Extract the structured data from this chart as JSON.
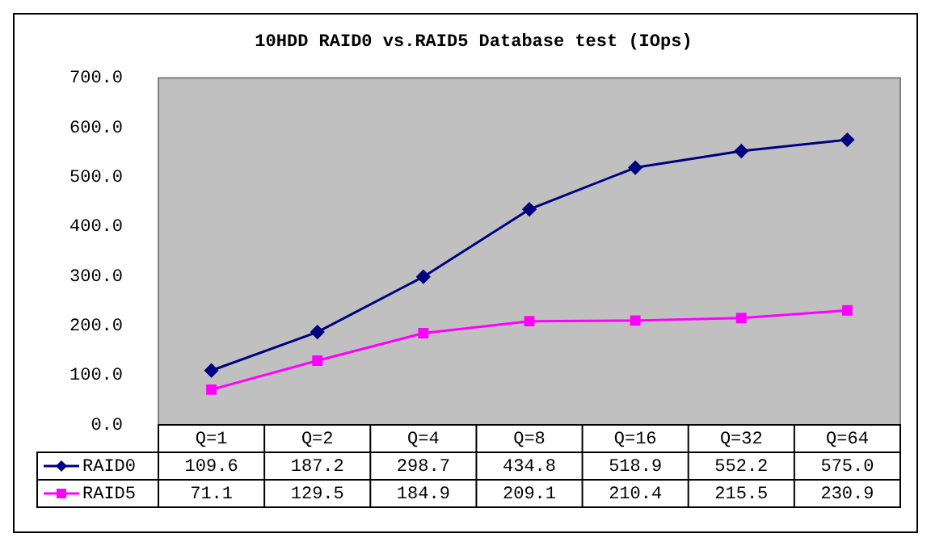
{
  "chart_data": {
    "type": "line",
    "title": "10HDD RAID0 vs.RAID5 Database test (IOps)",
    "categories": [
      "Q=1",
      "Q=2",
      "Q=4",
      "Q=8",
      "Q=16",
      "Q=32",
      "Q=64"
    ],
    "series": [
      {
        "name": "RAID0",
        "color": "#000080",
        "marker": "diamond",
        "values": [
          109.6,
          187.2,
          298.7,
          434.8,
          518.9,
          552.2,
          575.0
        ],
        "value_labels": [
          "109.6",
          "187.2",
          "298.7",
          "434.8",
          "518.9",
          "552.2",
          "575.0"
        ]
      },
      {
        "name": "RAID5",
        "color": "#ff00ff",
        "marker": "square",
        "values": [
          71.1,
          129.5,
          184.9,
          209.1,
          210.4,
          215.5,
          230.9
        ],
        "value_labels": [
          "71.1",
          "129.5",
          "184.9",
          "209.1",
          "210.4",
          "215.5",
          "230.9"
        ]
      }
    ],
    "ylim": [
      0,
      700
    ],
    "yticks": [
      {
        "value": 0,
        "label": "0.0"
      },
      {
        "value": 100,
        "label": "100.0"
      },
      {
        "value": 200,
        "label": "200.0"
      },
      {
        "value": 300,
        "label": "300.0"
      },
      {
        "value": 400,
        "label": "400.0"
      },
      {
        "value": 500,
        "label": "500.0"
      },
      {
        "value": 600,
        "label": "600.0"
      },
      {
        "value": 700,
        "label": "700.0"
      }
    ],
    "grid": false,
    "legend": "bottom left"
  }
}
